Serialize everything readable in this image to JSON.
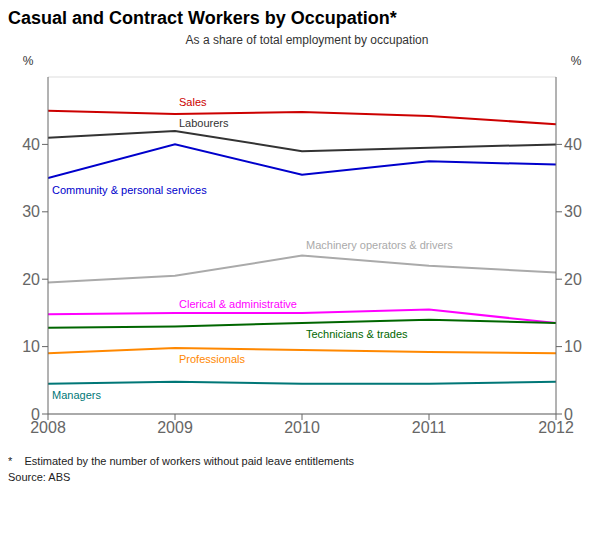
{
  "chart_data": {
    "type": "line",
    "title": "Casual and Contract Workers by Occupation*",
    "subtitle": "As a share of total employment by occupation",
    "footnote": "*    Estimated by the number of workers without paid leave entitlements",
    "source": "Source: ABS",
    "x": [
      2008,
      2009,
      2010,
      2011,
      2012
    ],
    "series": [
      {
        "name": "Sales",
        "color": "#cc0000",
        "values": [
          45.0,
          44.5,
          44.8,
          44.2,
          43.0
        ]
      },
      {
        "name": "Labourers",
        "color": "#333333",
        "values": [
          41.0,
          42.0,
          39.0,
          39.5,
          40.0
        ]
      },
      {
        "name": "Community & personal services",
        "color": "#0000cc",
        "values": [
          35.0,
          40.0,
          35.5,
          37.5,
          37.0
        ]
      },
      {
        "name": "Machinery operators & drivers",
        "color": "#aaaaaa",
        "values": [
          19.5,
          20.5,
          23.5,
          22.0,
          21.0
        ]
      },
      {
        "name": "Clerical & administrative",
        "color": "#ff00ff",
        "values": [
          14.8,
          15.0,
          15.0,
          15.5,
          13.5
        ]
      },
      {
        "name": "Technicians & trades",
        "color": "#006600",
        "values": [
          12.8,
          13.0,
          13.5,
          14.0,
          13.5
        ]
      },
      {
        "name": "Professionals",
        "color": "#ff8800",
        "values": [
          9.0,
          9.8,
          9.5,
          9.2,
          9.0
        ]
      },
      {
        "name": "Managers",
        "color": "#007777",
        "values": [
          4.5,
          4.8,
          4.5,
          4.5,
          4.8
        ]
      }
    ],
    "ylabel": "%",
    "y2label": "%",
    "xlim": [
      2008,
      2012
    ],
    "xticks": [
      2008,
      2009,
      2010,
      2011,
      2012
    ],
    "ylim": [
      0,
      50
    ],
    "yticks": [
      0,
      10,
      20,
      30,
      40
    ],
    "y2lim": [
      0,
      50
    ],
    "y2ticks": [
      0,
      10,
      20,
      30,
      40
    ],
    "grid": true
  }
}
